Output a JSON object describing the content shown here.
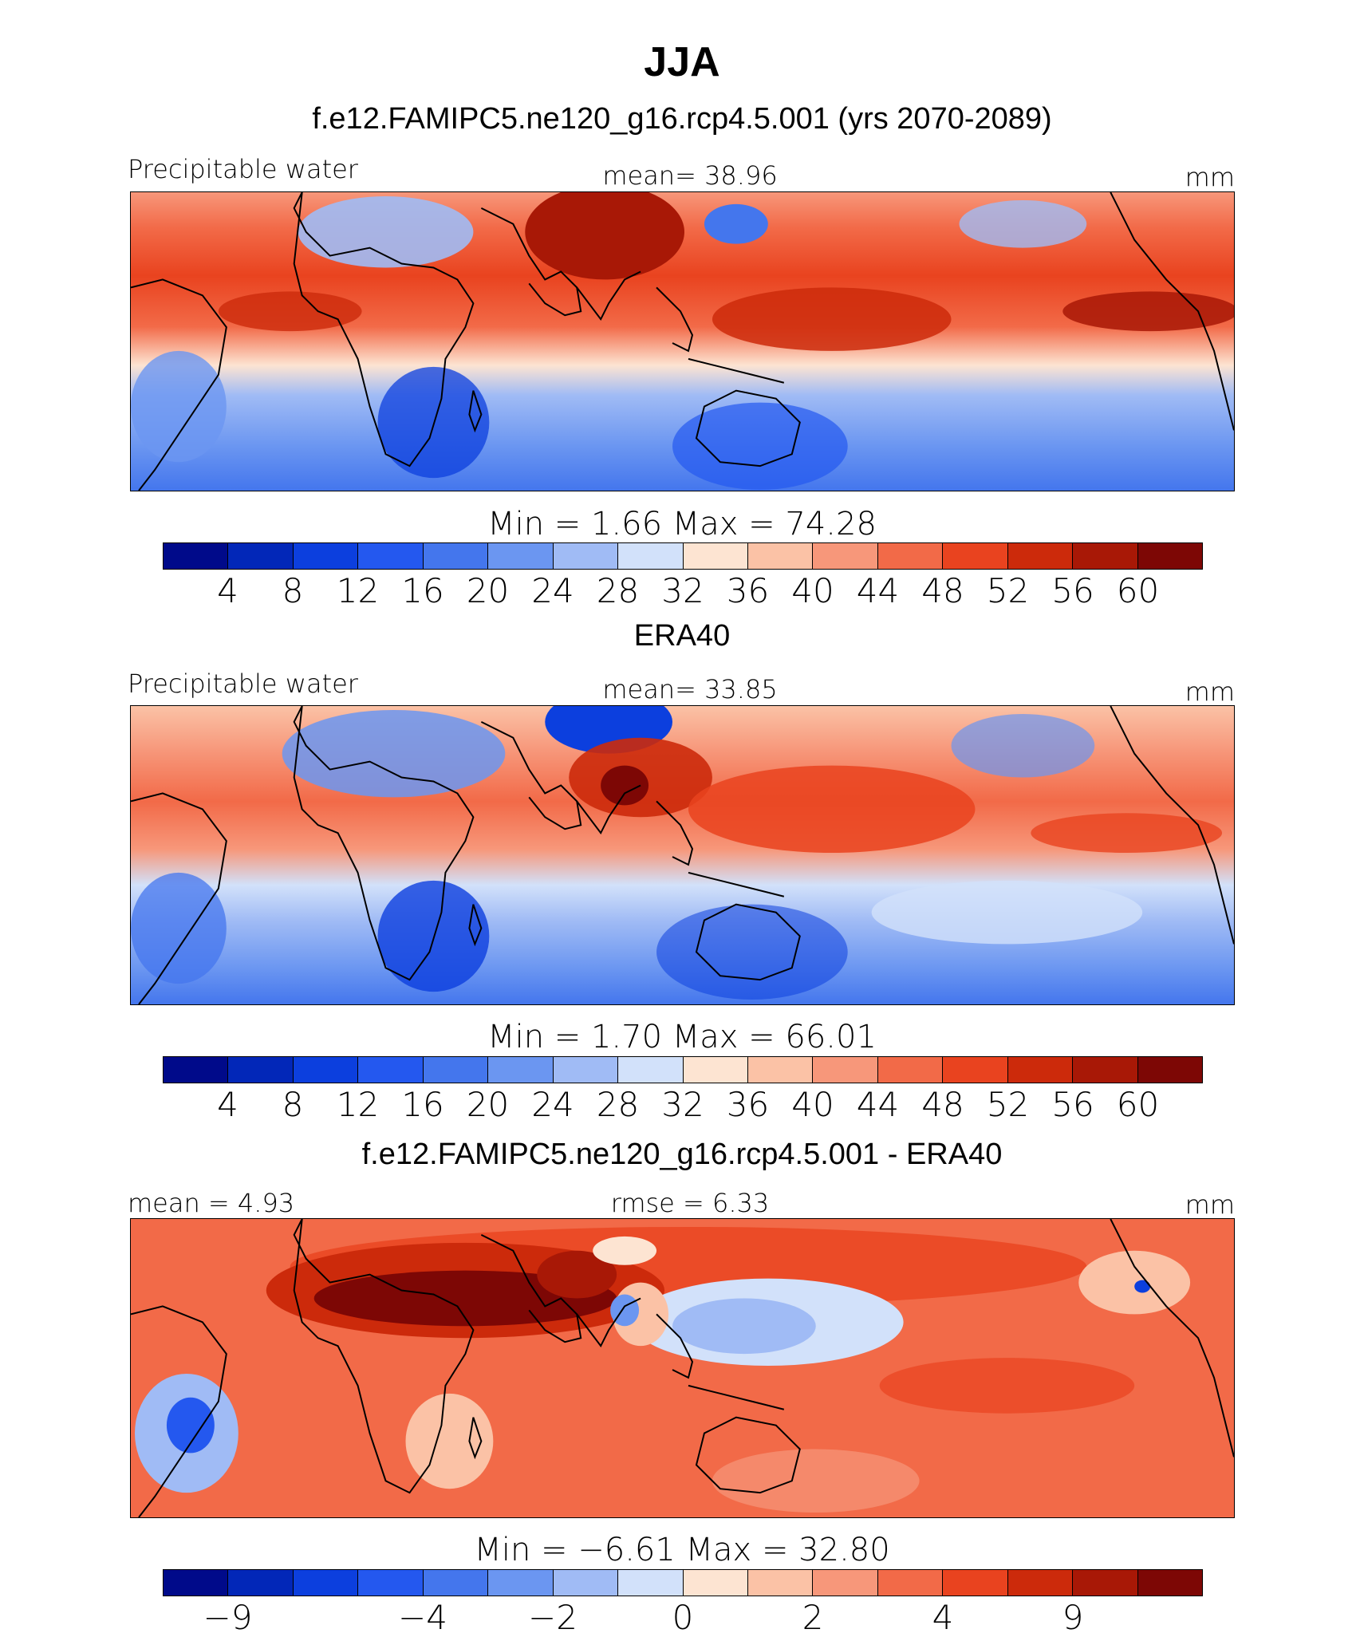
{
  "figure": {
    "title": "JJA"
  },
  "panels": [
    {
      "subtitle": "f.e12.FAMIPC5.ne120_g16.rcp4.5.001 (yrs 2070-2089)",
      "left_label": "Precipitable water",
      "center_label": "mean=   38.96",
      "units": "mm",
      "minmax": "Min =    1.66 Max =   74.28",
      "colorbar": {
        "colors": [
          "#000a8a",
          "#0227b8",
          "#0c3fde",
          "#2458ef",
          "#4476ed",
          "#6b96f1",
          "#a0bbf5",
          "#d2e1fa",
          "#fde4d2",
          "#fbc2a6",
          "#f7977a",
          "#f26a48",
          "#e9431f",
          "#cc2a0b",
          "#a81806",
          "#7d0705"
        ],
        "ticks": [
          "4",
          "8",
          "12",
          "16",
          "20",
          "24",
          "28",
          "32",
          "36",
          "40",
          "44",
          "48",
          "52",
          "56",
          "60"
        ]
      }
    },
    {
      "subtitle": "ERA40",
      "left_label": "Precipitable water",
      "center_label": "mean=   33.85",
      "units": "mm",
      "minmax": "Min =    1.70 Max =   66.01",
      "colorbar": {
        "colors": [
          "#000a8a",
          "#0227b8",
          "#0c3fde",
          "#2458ef",
          "#4476ed",
          "#6b96f1",
          "#a0bbf5",
          "#d2e1fa",
          "#fde4d2",
          "#fbc2a6",
          "#f7977a",
          "#f26a48",
          "#e9431f",
          "#cc2a0b",
          "#a81806",
          "#7d0705"
        ],
        "ticks": [
          "4",
          "8",
          "12",
          "16",
          "20",
          "24",
          "28",
          "32",
          "36",
          "40",
          "44",
          "48",
          "52",
          "56",
          "60"
        ]
      }
    },
    {
      "subtitle": "f.e12.FAMIPC5.ne120_g16.rcp4.5.001 - ERA40",
      "left_label": "mean =    4.93",
      "center_label": "rmse =    6.33",
      "units": "mm",
      "minmax": "Min =  −6.61 Max =   32.80",
      "colorbar": {
        "colors": [
          "#000a8a",
          "#0227b8",
          "#0c3fde",
          "#2458ef",
          "#4476ed",
          "#6b96f1",
          "#a0bbf5",
          "#d2e1fa",
          "#fde4d2",
          "#fbc2a6",
          "#f7977a",
          "#f26a48",
          "#e9431f",
          "#cc2a0b",
          "#a81806",
          "#7d0705"
        ],
        "ticks": [
          "−9",
          "−4",
          "−2",
          "0",
          "2",
          "4",
          "9"
        ]
      }
    }
  ]
}
